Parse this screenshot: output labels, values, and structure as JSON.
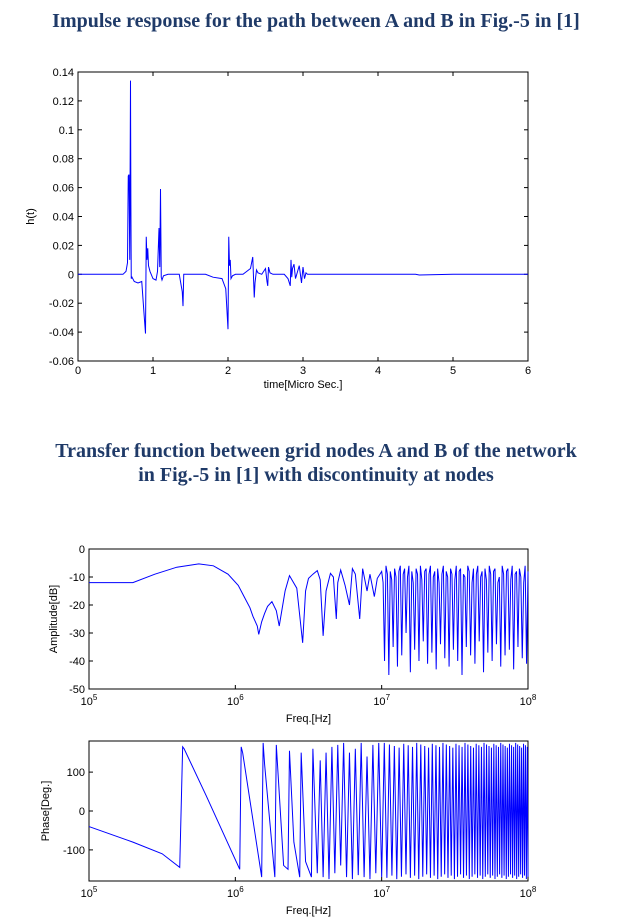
{
  "titles": {
    "top": "Impulse response for the path between A and B in Fig.-5 in [1]",
    "bottom_line1": "Transfer function between grid nodes A and B of the network",
    "bottom_line2": "in Fig.-5 in [1] with discontinuity at nodes"
  },
  "chart_data": [
    {
      "type": "line",
      "name": "impulse",
      "xlabel": "time[Micro Sec.]",
      "ylabel": "h(t)",
      "xlim": [
        0,
        6
      ],
      "ylim": [
        -0.06,
        0.14
      ],
      "xticks": [
        0,
        1,
        2,
        3,
        4,
        5,
        6
      ],
      "yticks": [
        -0.06,
        -0.04,
        -0.02,
        0,
        0.02,
        0.04,
        0.06,
        0.08,
        0.1,
        0.12,
        0.14
      ],
      "ytick_labels": [
        "-0.06",
        "-0.04",
        "-0.02",
        "0",
        "0.02",
        "0.04",
        "0.06",
        "0.08",
        "0.1",
        "0.12",
        "0.14"
      ],
      "grid": false,
      "color": "#0000ff",
      "x": [
        0,
        0.6,
        0.64,
        0.66,
        0.67,
        0.68,
        0.69,
        0.7,
        0.705,
        0.71,
        0.72,
        0.75,
        0.8,
        0.85,
        0.88,
        0.9,
        0.91,
        0.92,
        0.93,
        0.94,
        0.96,
        1.0,
        1.04,
        1.06,
        1.08,
        1.09,
        1.1,
        1.11,
        1.12,
        1.14,
        1.2,
        1.35,
        1.39,
        1.4,
        1.41,
        1.43,
        1.6,
        1.7,
        1.8,
        1.92,
        1.97,
        2.0,
        2.01,
        2.02,
        2.03,
        2.04,
        2.06,
        2.1,
        2.2,
        2.3,
        2.33,
        2.35,
        2.36,
        2.38,
        2.4,
        2.45,
        2.5,
        2.52,
        2.53,
        2.54,
        2.56,
        2.6,
        2.75,
        2.8,
        2.83,
        2.84,
        2.85,
        2.86,
        2.88,
        2.9,
        2.95,
        2.98,
        3.0,
        3.02,
        3.04,
        3.06,
        3.1,
        3.3,
        3.6,
        4.0,
        4.5,
        4.55,
        5.0,
        6.0
      ],
      "y": [
        0,
        0,
        0.002,
        0.008,
        0.068,
        0.069,
        0.01,
        0.134,
        0.05,
        -0.003,
        -0.002,
        -0.005,
        -0.006,
        -0.005,
        -0.027,
        -0.041,
        0.026,
        0.01,
        0.018,
        0.006,
        0.002,
        -0.003,
        -0.004,
        0.002,
        0.032,
        0.005,
        0.059,
        -0.002,
        -0.004,
        -0.001,
        0,
        0,
        -0.012,
        -0.022,
        0,
        0,
        0,
        0,
        -0.002,
        -0.003,
        -0.01,
        -0.038,
        0.026,
        0.006,
        0.01,
        -0.003,
        -0.001,
        0,
        0,
        0.004,
        0.012,
        -0.016,
        -0.006,
        0.003,
        0.001,
        0,
        0.004,
        -0.005,
        -0.008,
        0.005,
        0.001,
        0,
        0,
        -0.003,
        -0.008,
        0.01,
        -0.002,
        0.004,
        0.007,
        -0.003,
        0.006,
        -0.006,
        0.005,
        -0.003,
        0.001,
        0,
        0,
        0,
        0,
        0,
        0,
        -0.0005,
        0,
        0
      ]
    },
    {
      "type": "line",
      "name": "amplitude",
      "xlabel": "Freq.[Hz]",
      "ylabel": "Amplitude[dB]",
      "xscale": "log",
      "xlim": [
        100000,
        100000000
      ],
      "ylim": [
        -50,
        0
      ],
      "xtick_exponents": [
        5,
        6,
        7,
        8
      ],
      "yticks": [
        -50,
        -40,
        -30,
        -20,
        -10,
        0
      ],
      "grid": false,
      "color": "#0000ff",
      "log_f": [
        5,
        5.15,
        5.3,
        5.45,
        5.6,
        5.75,
        5.85,
        5.95,
        6.02,
        6.06,
        6.1,
        6.12,
        6.15,
        6.16,
        6.18,
        6.2,
        6.22,
        6.25,
        6.28,
        6.3,
        6.34,
        6.37,
        6.42,
        6.46,
        6.48,
        6.5,
        6.53,
        6.56,
        6.58,
        6.6,
        6.62,
        6.65,
        6.67,
        6.69,
        6.7,
        6.72,
        6.75,
        6.78,
        6.8,
        6.82,
        6.85,
        6.87,
        6.9,
        6.92,
        6.95,
        6.97,
        7.0,
        7.5,
        8.0
      ],
      "amp_db": [
        -12,
        -12,
        -12,
        -9,
        -6.5,
        -5.3,
        -6,
        -9,
        -13,
        -17,
        -21,
        -24,
        -27.5,
        -30.5,
        -26,
        -23,
        -20.5,
        -18.8,
        -22,
        -27.5,
        -15,
        -9.5,
        -14,
        -33.5,
        -15,
        -10.5,
        -9,
        -7.7,
        -11,
        -31,
        -15,
        -8.7,
        -10,
        -25,
        -12,
        -7.5,
        -13,
        -20,
        -7,
        -9,
        -25,
        -7,
        -15,
        -9,
        -17,
        -10.5,
        -8,
        -8,
        -8
      ],
      "osc_region_log_f": [
        7.0,
        8.0
      ],
      "osc_amp_db": [
        -12,
        -40,
        -6,
        -9,
        -45,
        -8,
        -11,
        -35,
        -7,
        -10,
        -42,
        -8,
        -6,
        -38,
        -9,
        -7,
        -30,
        -10,
        -6,
        -44,
        -8,
        -12,
        -36,
        -7,
        -9,
        -40,
        -6,
        -11,
        -33,
        -8,
        -7,
        -41,
        -9,
        -6,
        -37,
        -10,
        -8,
        -43,
        -7,
        -12,
        -34,
        -9,
        -6,
        -39,
        -8,
        -10,
        -42,
        -7,
        -9,
        -36,
        -11,
        -6,
        -40,
        -8,
        -7,
        -45,
        -9,
        -10,
        -35,
        -6,
        -8,
        -38,
        -12,
        -7,
        -41,
        -9,
        -6,
        -33,
        -10,
        -8,
        -44,
        -7,
        -11,
        -37,
        -6,
        -9,
        -40,
        -8,
        -7,
        -34,
        -12,
        -10,
        -42,
        -6,
        -9,
        -38,
        -8,
        -7,
        -36,
        -11,
        -6,
        -43,
        -9,
        -8,
        -35,
        -7,
        -10,
        -39,
        -12,
        -6,
        -41,
        -8
      ]
    },
    {
      "type": "line",
      "name": "phase",
      "xlabel": "Freq.[Hz]",
      "ylabel": "Phase[Deg.]",
      "xscale": "log",
      "xlim": [
        100000,
        100000000
      ],
      "ylim": [
        -180,
        180
      ],
      "xtick_exponents": [
        5,
        6,
        7,
        8
      ],
      "yticks": [
        -100,
        0,
        100
      ],
      "grid": false,
      "color": "#0000ff",
      "log_f": [
        5,
        5.3,
        5.5,
        5.62,
        5.64,
        5.65,
        5.8,
        6.03,
        6.04,
        6.05,
        6.18,
        6.19,
        6.2,
        6.27,
        6.28,
        6.33,
        6.36,
        6.37,
        6.4,
        6.44,
        6.45,
        6.48,
        6.52,
        6.53,
        6.56,
        6.58,
        6.6,
        6.62,
        6.64,
        6.66,
        6.68,
        6.7,
        6.72,
        6.74,
        6.76,
        6.78,
        6.8,
        6.82,
        6.84,
        6.86,
        6.88,
        6.9,
        6.92,
        6.94,
        6.96,
        6.98,
        7.0
      ],
      "phase_deg": [
        -40,
        -80,
        -110,
        -145,
        165,
        160,
        40,
        -150,
        165,
        150,
        -170,
        175,
        120,
        -170,
        170,
        -140,
        -150,
        155,
        -80,
        -170,
        150,
        -130,
        -170,
        160,
        -160,
        130,
        -170,
        150,
        -175,
        165,
        -160,
        170,
        -140,
        175,
        -170,
        150,
        -175,
        160,
        -165,
        175,
        -170,
        140,
        -175,
        170,
        -160,
        175,
        -170
      ],
      "dense_region_log_f": [
        7.0,
        8.0
      ]
    }
  ]
}
